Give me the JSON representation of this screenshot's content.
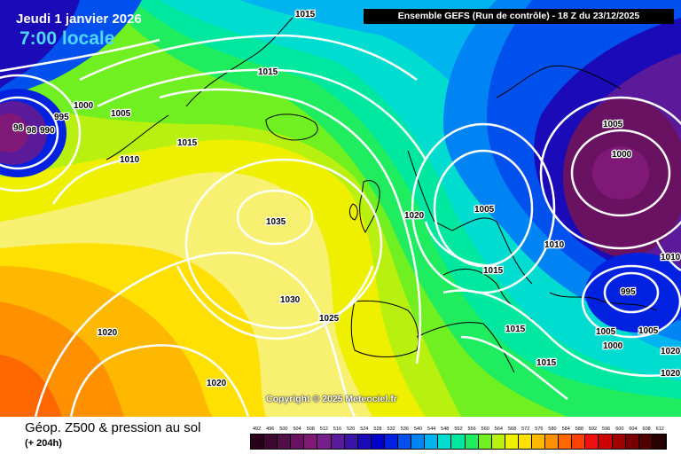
{
  "header": {
    "date": "Jeudi 1 janvier 2026",
    "time": "7:00 locale",
    "run": "Ensemble GEFS (Run de contrôle) - 18 Z du 23/12/2025"
  },
  "copyright": "Copyright © 2025 Meteociel.fr",
  "footer": {
    "title": "Géop. Z500 & pression au sol",
    "subtitle": "(+ 204h)"
  },
  "isobar_labels": [
    "1015",
    "1015",
    "1000",
    "995",
    "990",
    "98",
    "98",
    "1005",
    "1015",
    "1010",
    "1035",
    "1030",
    "1025",
    "1020",
    "1020",
    "1020",
    "1020",
    "1005",
    "1000",
    "1005",
    "1010",
    "1010",
    "1015",
    "995",
    "1005",
    "1000",
    "1005",
    "1015",
    "1020",
    "1015"
  ],
  "scale": {
    "labels": [
      "492",
      "496",
      "500",
      "504",
      "508",
      "512",
      "516",
      "520",
      "524",
      "528",
      "532",
      "536",
      "540",
      "544",
      "548",
      "552",
      "556",
      "560",
      "564",
      "568",
      "572",
      "576",
      "580",
      "584",
      "588",
      "592",
      "596",
      "600",
      "604",
      "608",
      "612"
    ],
    "colors": [
      "#2a0018",
      "#3c0a30",
      "#520e48",
      "#6a1262",
      "#801878",
      "#781e8c",
      "#5a1a9a",
      "#3a14a8",
      "#1a0ab8",
      "#0000cc",
      "#0022e0",
      "#0050ee",
      "#0084f4",
      "#00b4f0",
      "#00dcd0",
      "#00e8a0",
      "#20ec60",
      "#70f020",
      "#b8f010",
      "#eef000",
      "#ffe000",
      "#ffb800",
      "#ff9000",
      "#ff6800",
      "#ff4000",
      "#ee1010",
      "#cc0000",
      "#a00000",
      "#780000",
      "#500000",
      "#280000"
    ]
  }
}
